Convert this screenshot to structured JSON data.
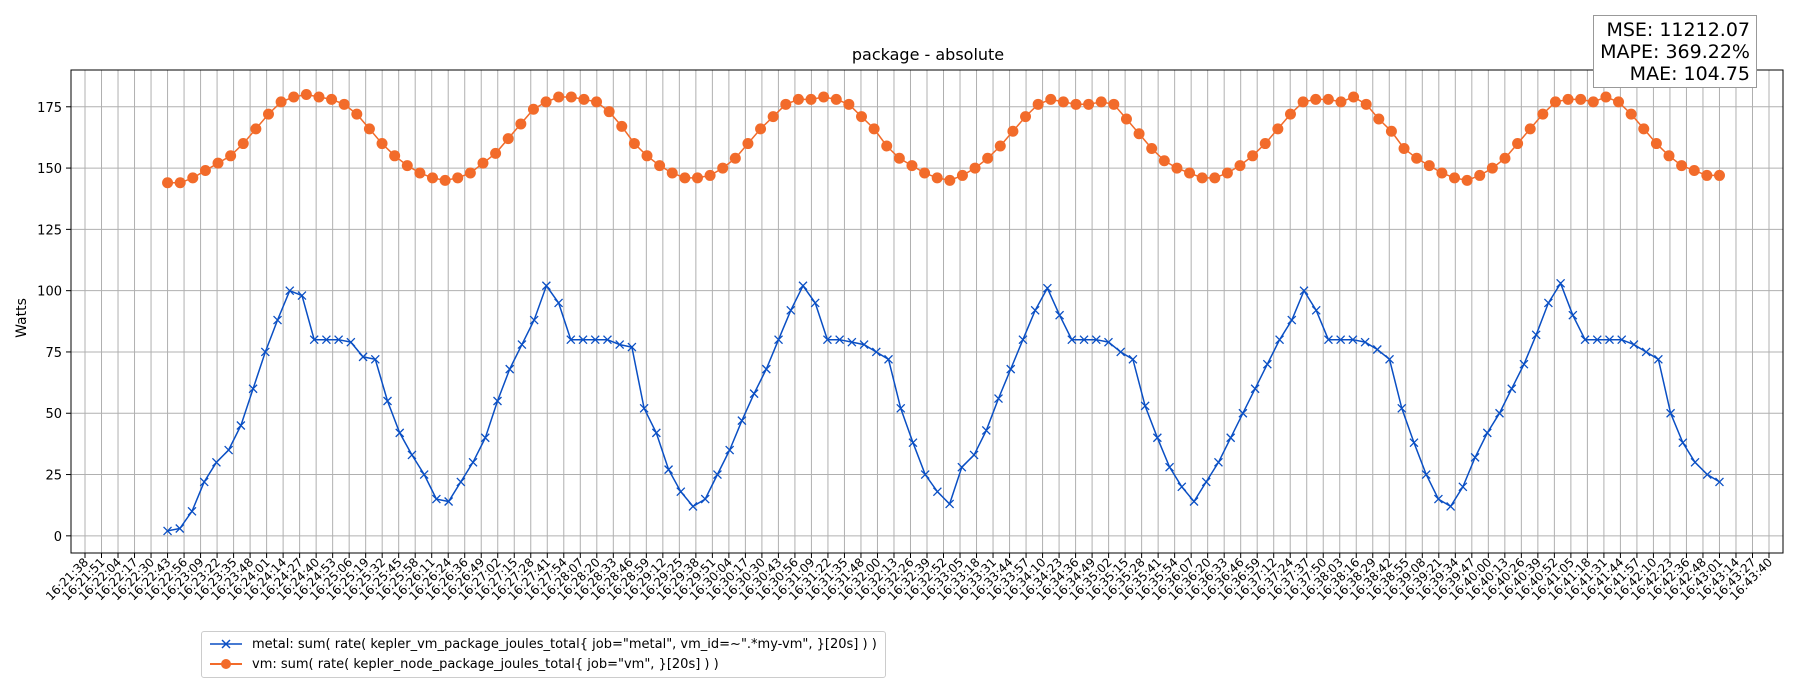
{
  "stats": {
    "mse": "MSE: 11212.07",
    "mape": "MAPE: 369.22%",
    "mae": "MAE: 104.75"
  },
  "chart_data": {
    "type": "line",
    "title": "package - absolute",
    "ylabel": "Watts",
    "xlabel": "",
    "ylim": [
      -7,
      190
    ],
    "yticks": [
      0,
      25,
      50,
      75,
      100,
      125,
      150,
      175
    ],
    "grid": true,
    "legend_position": "bottom-left",
    "x_tick_labels": [
      "16:21:38",
      "16:21:51",
      "16:22:04",
      "16:22:17",
      "16:22:30",
      "16:22:43",
      "16:22:56",
      "16:23:09",
      "16:23:22",
      "16:23:35",
      "16:23:48",
      "16:24:01",
      "16:24:14",
      "16:24:27",
      "16:24:40",
      "16:24:53",
      "16:25:06",
      "16:25:19",
      "16:25:32",
      "16:25:45",
      "16:25:58",
      "16:26:11",
      "16:26:24",
      "16:26:36",
      "16:26:49",
      "16:27:02",
      "16:27:15",
      "16:27:28",
      "16:27:41",
      "16:27:54",
      "16:28:07",
      "16:28:20",
      "16:28:33",
      "16:28:46",
      "16:28:59",
      "16:29:12",
      "16:29:25",
      "16:29:38",
      "16:29:51",
      "16:30:04",
      "16:30:17",
      "16:30:30",
      "16:30:43",
      "16:30:56",
      "16:31:09",
      "16:31:22",
      "16:31:35",
      "16:31:48",
      "16:32:00",
      "16:32:13",
      "16:32:26",
      "16:32:39",
      "16:32:52",
      "16:33:05",
      "16:33:18",
      "16:33:31",
      "16:33:44",
      "16:33:57",
      "16:34:10",
      "16:34:23",
      "16:34:36",
      "16:34:49",
      "16:35:02",
      "16:35:15",
      "16:35:28",
      "16:35:41",
      "16:35:54",
      "16:36:07",
      "16:36:20",
      "16:36:33",
      "16:36:46",
      "16:36:59",
      "16:37:12",
      "16:37:24",
      "16:37:37",
      "16:37:50",
      "16:38:03",
      "16:38:16",
      "16:38:29",
      "16:38:42",
      "16:38:55",
      "16:39:08",
      "16:39:21",
      "16:39:34",
      "16:39:47",
      "16:40:00",
      "16:40:13",
      "16:40:26",
      "16:40:39",
      "16:40:52",
      "16:41:05",
      "16:41:18",
      "16:41:31",
      "16:41:44",
      "16:41:57",
      "16:42:10",
      "16:42:23",
      "16:42:36",
      "16:42:48",
      "16:43:01",
      "16:43:14",
      "16:43:27",
      "16:43:40"
    ],
    "series": [
      {
        "name": "metal: sum( rate( kepler_vm_package_joules_total{ job=\"metal\", vm_id=~\".*my-vm\", }[20s] ) )",
        "color": "#0a4fc4",
        "marker": "x",
        "x_start_tick": 5,
        "x_end_tick": 99,
        "values": [
          2,
          3,
          10,
          22,
          30,
          35,
          45,
          60,
          75,
          88,
          100,
          98,
          80,
          80,
          80,
          79,
          73,
          72,
          55,
          42,
          33,
          25,
          15,
          14,
          22,
          30,
          40,
          55,
          68,
          78,
          88,
          102,
          95,
          80,
          80,
          80,
          80,
          78,
          77,
          52,
          42,
          27,
          18,
          12,
          15,
          25,
          35,
          47,
          58,
          68,
          80,
          92,
          102,
          95,
          80,
          80,
          79,
          78,
          75,
          72,
          52,
          38,
          25,
          18,
          13,
          28,
          33,
          43,
          56,
          68,
          80,
          92,
          101,
          90,
          80,
          80,
          80,
          79,
          75,
          72,
          53,
          40,
          28,
          20,
          14,
          22,
          30,
          40,
          50,
          60,
          70,
          80,
          88,
          100,
          92,
          80,
          80,
          80,
          79,
          76,
          72,
          52,
          38,
          25,
          15,
          12,
          20,
          32,
          42,
          50,
          60,
          70,
          82,
          95,
          103,
          90,
          80,
          80,
          80,
          80,
          78,
          75,
          72,
          50,
          38,
          30,
          25,
          22
        ]
      },
      {
        "name": "vm: sum( rate( kepler_node_package_joules_total{ job=\"vm\", }[20s] ) )",
        "color": "#f26b2a",
        "marker": "o",
        "x_start_tick": 5,
        "x_end_tick": 99,
        "values": [
          144,
          144,
          146,
          149,
          152,
          155,
          160,
          166,
          172,
          177,
          179,
          180,
          179,
          178,
          176,
          172,
          166,
          160,
          155,
          151,
          148,
          146,
          145,
          146,
          148,
          152,
          156,
          162,
          168,
          174,
          177,
          179,
          179,
          178,
          177,
          173,
          167,
          160,
          155,
          151,
          148,
          146,
          146,
          147,
          150,
          154,
          160,
          166,
          171,
          176,
          178,
          178,
          179,
          178,
          176,
          171,
          166,
          159,
          154,
          151,
          148,
          146,
          145,
          147,
          150,
          154,
          159,
          165,
          171,
          176,
          178,
          177,
          176,
          176,
          177,
          176,
          170,
          164,
          158,
          153,
          150,
          148,
          146,
          146,
          148,
          151,
          155,
          160,
          166,
          172,
          177,
          178,
          178,
          177,
          179,
          176,
          170,
          165,
          158,
          154,
          151,
          148,
          146,
          145,
          147,
          150,
          154,
          160,
          166,
          172,
          177,
          178,
          178,
          177,
          179,
          177,
          172,
          166,
          160,
          155,
          151,
          149,
          147,
          147
        ]
      }
    ]
  }
}
